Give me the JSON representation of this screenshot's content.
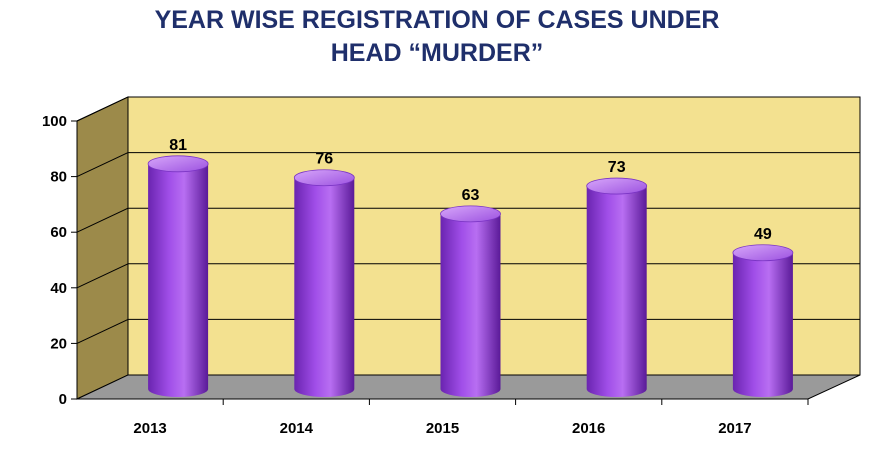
{
  "title_lines": [
    "YEAR WISE REGISTRATION OF CASES UNDER",
    "HEAD  “MURDER”"
  ],
  "colors": {
    "back_wall": "#f3e190",
    "side_wall": "#9c8a4a",
    "floor": "#9a9a9a",
    "grid": "#000000",
    "bar_light": "#c07cf0",
    "bar_mid": "#9040d8",
    "bar_dark": "#5a1a98",
    "title": "#1f2f6b"
  },
  "chart_data": {
    "type": "bar",
    "title": "YEAR WISE REGISTRATION OF CASES UNDER HEAD “MURDER”",
    "categories": [
      "2013",
      "2014",
      "2015",
      "2016",
      "2017"
    ],
    "values": [
      81,
      76,
      63,
      73,
      49
    ],
    "data_labels": [
      "81",
      "76",
      "63",
      "73",
      "49"
    ],
    "ylim": [
      0,
      100
    ],
    "yticks": [
      "0",
      "20",
      "40",
      "60",
      "80",
      "100"
    ],
    "xlabel": "",
    "ylabel": "",
    "grid": true,
    "style": "3d-cylinder"
  }
}
